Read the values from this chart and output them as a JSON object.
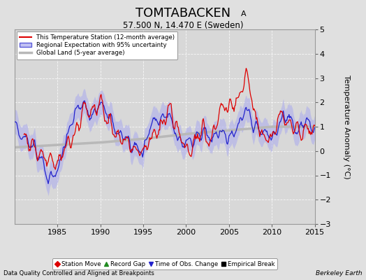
{
  "title": "TOMTABACKEN",
  "title_sub": "A",
  "subtitle": "57.500 N, 14.470 E (Sweden)",
  "xlabel_left": "Data Quality Controlled and Aligned at Breakpoints",
  "xlabel_right": "Berkeley Earth",
  "ylabel": "Temperature Anomaly (°C)",
  "xlim": [
    1980,
    2015
  ],
  "ylim": [
    -3,
    5
  ],
  "yticks": [
    -3,
    -2,
    -1,
    0,
    1,
    2,
    3,
    4,
    5
  ],
  "xticks": [
    1985,
    1990,
    1995,
    2000,
    2005,
    2010,
    2015
  ],
  "bg_color": "#e0e0e0",
  "plot_bg_color": "#d8d8d8",
  "legend_items": [
    {
      "label": "This Temperature Station (12-month average)",
      "color": "#dd0000",
      "lw": 1.2
    },
    {
      "label": "Regional Expectation with 95% uncertainty",
      "color": "#2222cc",
      "lw": 1.2
    },
    {
      "label": "Global Land (5-year average)",
      "color": "#b0b0b0",
      "lw": 3
    }
  ],
  "legend_markers": [
    {
      "label": "Station Move",
      "marker": "D",
      "color": "#dd0000"
    },
    {
      "label": "Record Gap",
      "marker": "^",
      "color": "#228B22"
    },
    {
      "label": "Time of Obs. Change",
      "marker": "v",
      "color": "#2222cc"
    },
    {
      "label": "Empirical Break",
      "marker": "s",
      "color": "#000000"
    }
  ],
  "regional_x": [
    1980,
    1981,
    1982,
    1983,
    1984,
    1985,
    1986,
    1987,
    1988,
    1989,
    1990,
    1991,
    1992,
    1993,
    1994,
    1995,
    1996,
    1997,
    1998,
    1999,
    2000,
    2001,
    2002,
    2003,
    2004,
    2005,
    2006,
    2007,
    2008,
    2009,
    2010,
    2011,
    2012,
    2013,
    2014,
    2015
  ],
  "regional_y": [
    1.2,
    0.5,
    0.3,
    -0.2,
    -1.3,
    -0.8,
    0.5,
    1.5,
    2.1,
    1.2,
    2.0,
    1.5,
    0.8,
    0.5,
    0.2,
    0.0,
    1.2,
    1.3,
    1.5,
    0.5,
    0.3,
    0.5,
    0.8,
    0.5,
    0.8,
    0.5,
    1.0,
    1.8,
    1.0,
    0.8,
    0.5,
    1.2,
    1.5,
    0.8,
    1.2,
    1.0
  ],
  "station_x": [
    1981,
    1982,
    1983,
    1984,
    1985,
    1986,
    1987,
    1988,
    1989,
    1990,
    1991,
    1992,
    1993,
    1994,
    1995,
    1996,
    1997,
    1998,
    1999,
    2000,
    2001,
    2002,
    2003,
    2004,
    2005,
    2006,
    2007,
    2008,
    2009,
    2010,
    2011,
    2012,
    2013,
    2014,
    2015
  ],
  "station_y": [
    0.5,
    0.2,
    -0.1,
    -0.3,
    -0.5,
    0.2,
    0.6,
    1.8,
    1.5,
    2.0,
    1.2,
    0.5,
    0.3,
    0.0,
    -0.1,
    0.5,
    1.0,
    1.8,
    0.8,
    0.0,
    0.3,
    0.8,
    0.5,
    1.8,
    1.8,
    2.0,
    3.3,
    1.5,
    0.5,
    0.5,
    1.5,
    1.0,
    0.8,
    0.8,
    1.0
  ],
  "global_x": [
    1980,
    1985,
    1990,
    1995,
    2000,
    2005,
    2010,
    2015
  ],
  "global_y": [
    0.15,
    0.25,
    0.35,
    0.5,
    0.7,
    0.85,
    1.0,
    1.0
  ]
}
